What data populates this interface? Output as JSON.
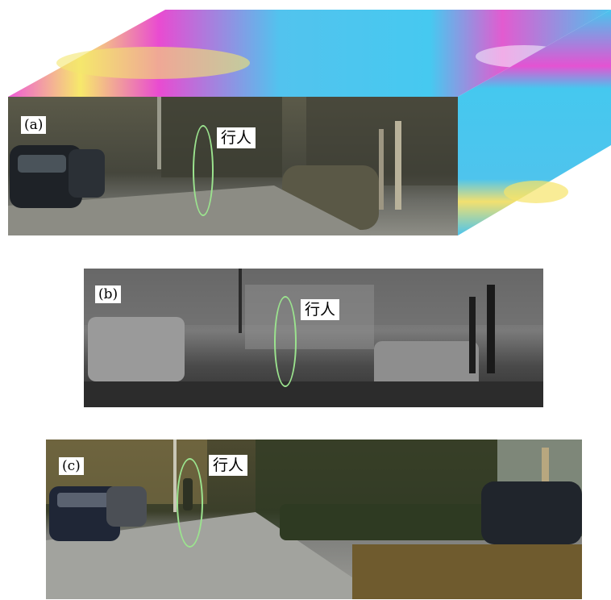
{
  "panels": [
    {
      "id": "a",
      "label": "(a)",
      "annotation": "行人"
    },
    {
      "id": "b",
      "label": "(b)",
      "annotation": "行人"
    },
    {
      "id": "c",
      "label": "(c)",
      "annotation": "行人"
    }
  ],
  "colors": {
    "ellipse": "#9be38e",
    "cube_base": "#47c6ee",
    "cube_magenta": "#e14bd6",
    "cube_yellow": "#f6e46a"
  }
}
